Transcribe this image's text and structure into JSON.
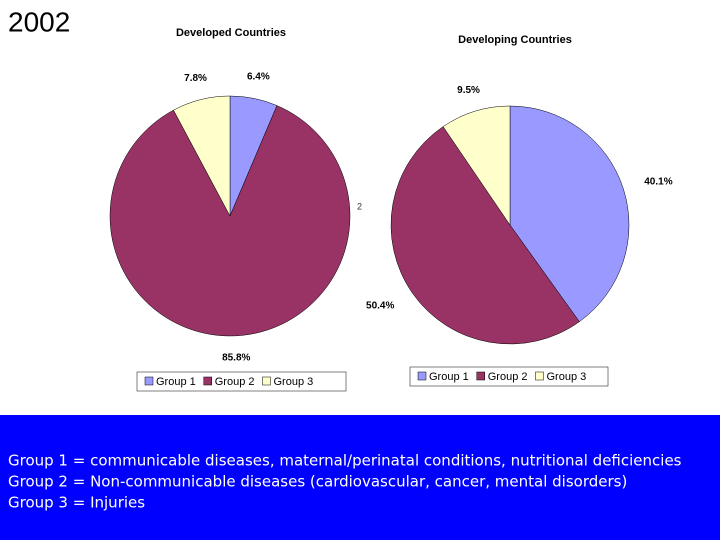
{
  "title": "2002",
  "mark": "2",
  "chart_data": [
    {
      "type": "pie",
      "title": "Developed Countries",
      "categories": [
        "Group 1",
        "Group 2",
        "Group 3"
      ],
      "values": [
        6.4,
        85.8,
        7.8
      ],
      "value_labels": [
        "6.4%",
        "85.8%",
        "7.8%"
      ],
      "colors": [
        "#9999ff",
        "#993366",
        "#ffffcc"
      ]
    },
    {
      "type": "pie",
      "title": "Developing Countries",
      "categories": [
        "Group 1",
        "Group 2",
        "Group 3"
      ],
      "values": [
        40.1,
        50.4,
        9.5
      ],
      "value_labels": [
        "40.1%",
        "50.4%",
        "9.5%"
      ],
      "colors": [
        "#9999ff",
        "#993366",
        "#ffffcc"
      ]
    }
  ],
  "notes": [
    "Group 1 = communicable diseases, maternal/perinatal conditions, nutritional deficiencies",
    "Group 2 = Non-communicable diseases (cardiovascular, cancer, mental disorders)",
    "Group 3 = Injuries"
  ]
}
